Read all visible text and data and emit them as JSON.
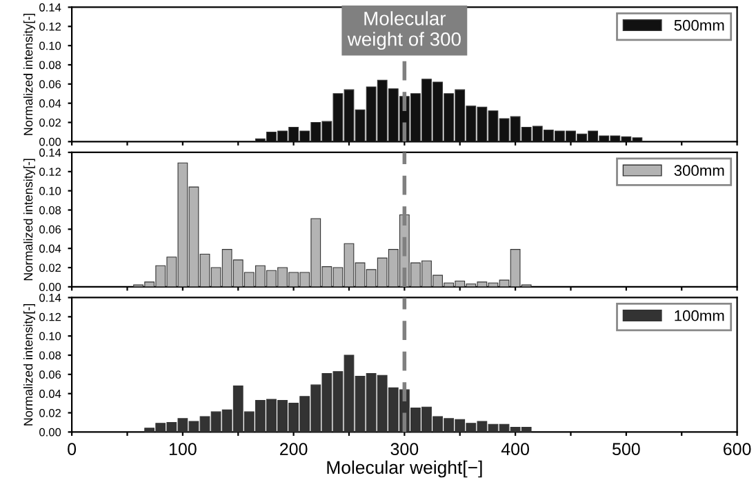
{
  "chart_data": [
    {
      "type": "bar",
      "ylabel": "Normalized intensity[-]",
      "xlim": [
        0,
        600
      ],
      "ylim": [
        0,
        0.14
      ],
      "xticks": [
        0,
        {
          "value": 50,
          "label": null
        },
        100,
        {
          "value": 150,
          "label": null
        },
        200,
        {
          "value": 250,
          "label": null
        },
        300,
        {
          "value": 350,
          "label": null
        },
        400,
        {
          "value": 450,
          "label": null
        },
        500,
        {
          "value": 550,
          "label": null
        },
        600
      ],
      "yticks": [
        {
          "value": 0,
          "label": "0.00"
        },
        {
          "value": 0.02,
          "label": "0.02"
        },
        {
          "value": 0.04,
          "label": "0.04"
        },
        {
          "value": 0.06,
          "label": "0.06"
        },
        {
          "value": 0.08,
          "label": "0.08"
        },
        {
          "value": 0.1,
          "label": "0.10"
        },
        {
          "value": 0.12,
          "label": "0.12"
        },
        {
          "value": 0.14,
          "label": "0.14"
        }
      ],
      "tick_labels": "y",
      "legend": "top right",
      "grid": false,
      "ref_lines": [
        {
          "axis": "x",
          "value": 300,
          "label": "Molecular\nweight of 300",
          "color": "#808080",
          "line_style": "dashed"
        }
      ],
      "series": [
        {
          "name": "500mm",
          "color": "#111111",
          "x": [
            170,
            180,
            190,
            200,
            210,
            220,
            230,
            240,
            250,
            260,
            270,
            280,
            290,
            300,
            310,
            320,
            330,
            340,
            350,
            360,
            370,
            380,
            390,
            400,
            410,
            420,
            430,
            440,
            450,
            460,
            470,
            480,
            490,
            500,
            510
          ],
          "values": [
            0.003,
            0.01,
            0.011,
            0.015,
            0.011,
            0.02,
            0.021,
            0.05,
            0.054,
            0.033,
            0.057,
            0.064,
            0.055,
            0.047,
            0.05,
            0.065,
            0.062,
            0.05,
            0.054,
            0.037,
            0.036,
            0.032,
            0.024,
            0.026,
            0.015,
            0.016,
            0.012,
            0.011,
            0.011,
            0.008,
            0.011,
            0.006,
            0.006,
            0.005,
            0.004
          ]
        }
      ]
    },
    {
      "type": "bar",
      "ylabel": "Normalized intensity[-]",
      "xlim": [
        0,
        600
      ],
      "ylim": [
        0,
        0.14
      ],
      "xticks": [
        0,
        {
          "value": 50,
          "label": null
        },
        100,
        {
          "value": 150,
          "label": null
        },
        200,
        {
          "value": 250,
          "label": null
        },
        300,
        {
          "value": 350,
          "label": null
        },
        400,
        {
          "value": 450,
          "label": null
        },
        500,
        {
          "value": 550,
          "label": null
        },
        600
      ],
      "yticks": [
        {
          "value": 0,
          "label": "0.00"
        },
        {
          "value": 0.02,
          "label": "0.02"
        },
        {
          "value": 0.04,
          "label": "0.04"
        },
        {
          "value": 0.06,
          "label": "0.06"
        },
        {
          "value": 0.08,
          "label": "0.08"
        },
        {
          "value": 0.1,
          "label": "0.10"
        },
        {
          "value": 0.12,
          "label": "0.12"
        },
        {
          "value": 0.14,
          "label": "0.14"
        }
      ],
      "tick_labels": "y",
      "legend": "top right",
      "grid": false,
      "ref_lines": [
        {
          "axis": "x",
          "value": 300,
          "color": "#808080",
          "line_style": "dashed"
        }
      ],
      "series": [
        {
          "name": "300mm",
          "color": "#b3b3b3",
          "x": [
            60,
            70,
            80,
            90,
            100,
            110,
            120,
            130,
            140,
            150,
            160,
            170,
            180,
            190,
            200,
            210,
            220,
            230,
            240,
            250,
            260,
            270,
            280,
            290,
            300,
            310,
            320,
            330,
            340,
            350,
            360,
            370,
            380,
            390,
            400,
            410
          ],
          "values": [
            0.002,
            0.005,
            0.022,
            0.031,
            0.129,
            0.104,
            0.034,
            0.02,
            0.039,
            0.028,
            0.015,
            0.022,
            0.017,
            0.02,
            0.015,
            0.015,
            0.071,
            0.021,
            0.02,
            0.045,
            0.025,
            0.018,
            0.03,
            0.039,
            0.075,
            0.025,
            0.027,
            0.012,
            0.004,
            0.006,
            0.003,
            0.005,
            0.004,
            0.007,
            0.039,
            0.002
          ]
        }
      ]
    },
    {
      "type": "bar",
      "ylabel": "Normalized intensity[-]",
      "xlabel": "Molecular weight[−]",
      "xlim": [
        0,
        600
      ],
      "ylim": [
        0,
        0.14
      ],
      "xticks": [
        0,
        {
          "value": 50,
          "label": null
        },
        100,
        {
          "value": 150,
          "label": null
        },
        200,
        {
          "value": 250,
          "label": null
        },
        300,
        {
          "value": 350,
          "label": null
        },
        400,
        {
          "value": 450,
          "label": null
        },
        500,
        {
          "value": 550,
          "label": null
        },
        600
      ],
      "yticks": [
        {
          "value": 0,
          "label": "0.00"
        },
        {
          "value": 0.02,
          "label": "0.02"
        },
        {
          "value": 0.04,
          "label": "0.04"
        },
        {
          "value": 0.06,
          "label": "0.06"
        },
        {
          "value": 0.08,
          "label": "0.08"
        },
        {
          "value": 0.1,
          "label": "0.10"
        },
        {
          "value": 0.12,
          "label": "0.12"
        },
        {
          "value": 0.14,
          "label": "0.14"
        }
      ],
      "legend": "top right",
      "grid": false,
      "ref_lines": [
        {
          "axis": "x",
          "value": 300,
          "color": "#808080",
          "line_style": "dashed"
        }
      ],
      "series": [
        {
          "name": "100mm",
          "color": "#333333",
          "x": [
            70,
            80,
            90,
            100,
            110,
            120,
            130,
            140,
            150,
            160,
            170,
            180,
            190,
            200,
            210,
            220,
            230,
            240,
            250,
            260,
            270,
            280,
            290,
            300,
            310,
            320,
            330,
            340,
            350,
            360,
            370,
            380,
            390,
            400,
            410
          ],
          "values": [
            0.004,
            0.009,
            0.01,
            0.014,
            0.011,
            0.016,
            0.021,
            0.023,
            0.048,
            0.021,
            0.033,
            0.034,
            0.033,
            0.03,
            0.037,
            0.049,
            0.061,
            0.063,
            0.08,
            0.058,
            0.061,
            0.059,
            0.046,
            0.044,
            0.025,
            0.026,
            0.016,
            0.014,
            0.013,
            0.009,
            0.011,
            0.008,
            0.008,
            0.005,
            0.005
          ]
        }
      ]
    }
  ]
}
